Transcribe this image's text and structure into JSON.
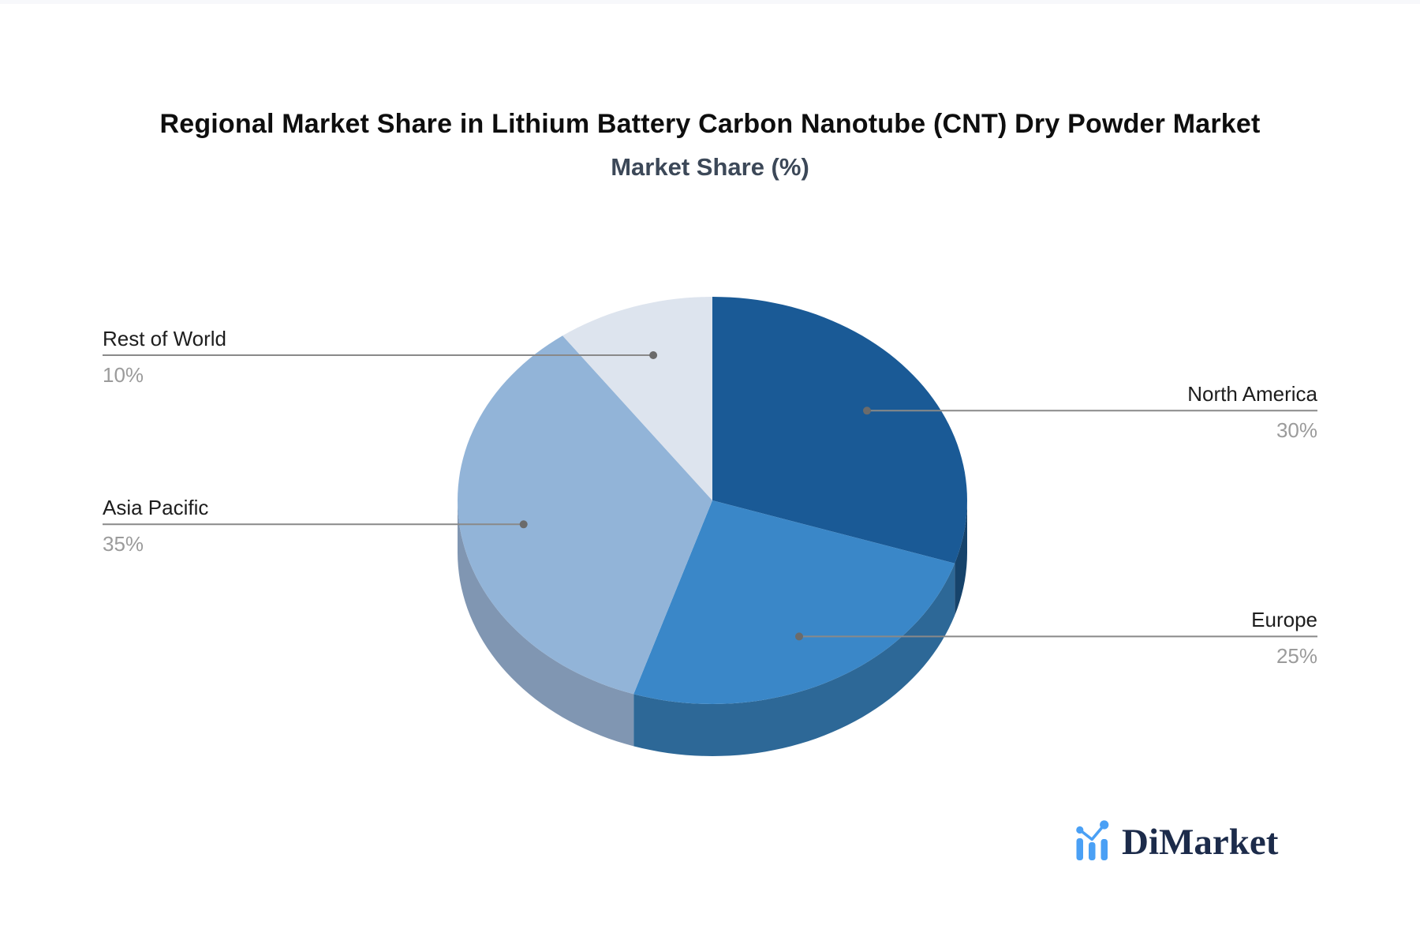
{
  "header": {
    "title": "Regional Market Share in Lithium Battery Carbon Nanotube (CNT) Dry Powder Market",
    "subtitle": "Market Share (%)"
  },
  "chart_data": {
    "type": "pie",
    "style": "3d",
    "start_angle_deg": 0,
    "direction": "clockwise",
    "legend": "none",
    "unit": "%",
    "title": "Regional Market Share in Lithium Battery Carbon Nanotube (CNT) Dry Powder Market",
    "subtitle": "Market Share (%)",
    "categories": [
      "North America",
      "Europe",
      "Asia Pacific",
      "Rest of World"
    ],
    "values": [
      30,
      25,
      35,
      10
    ],
    "slices": [
      {
        "label": "North America",
        "value": 30,
        "value_label": "30%",
        "color": "#1a5a96",
        "side_color": "#16436b",
        "label_side": "right"
      },
      {
        "label": "Europe",
        "value": 25,
        "value_label": "25%",
        "color": "#3a87c8",
        "side_color": "#2d6897",
        "label_side": "right"
      },
      {
        "label": "Asia Pacific",
        "value": 35,
        "value_label": "35%",
        "color": "#92b4d8",
        "side_color": "#8096b2",
        "label_side": "left"
      },
      {
        "label": "Rest of World",
        "value": 10,
        "value_label": "10%",
        "color": "#dde4ee",
        "side_color": "#b7c3d3",
        "label_side": "left"
      }
    ],
    "leader_line_color": "#898989",
    "leader_dot_color": "#6b6b6b"
  },
  "branding": {
    "logo_text": "DiMarket",
    "logo_icon": "bar-line-chart-icon",
    "logo_icon_color": "#4aa0f5",
    "logo_text_color": "#1c2b4a"
  }
}
